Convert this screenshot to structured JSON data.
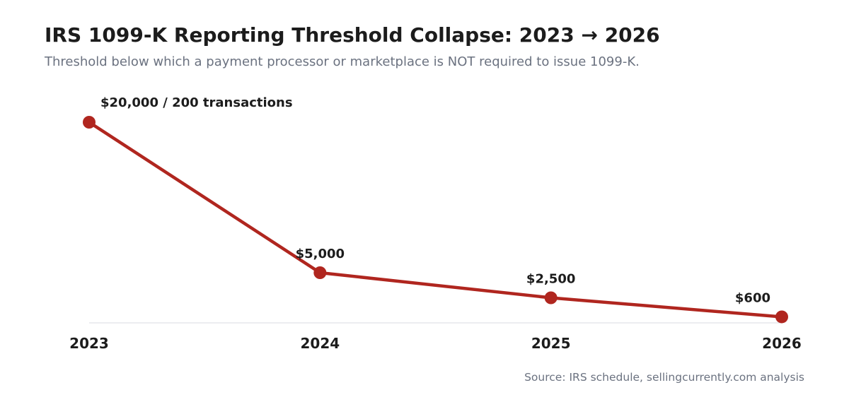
{
  "chart_data": {
    "type": "line",
    "title": "IRS 1099-K Reporting Threshold Collapse: 2023 → 2026",
    "subtitle": "Threshold below which a payment processor or marketplace is NOT required to issue 1099-K.",
    "source": "Source: IRS schedule, sellingcurrently.com analysis",
    "x": [
      "2023",
      "2024",
      "2025",
      "2026"
    ],
    "values": [
      20000,
      5000,
      2500,
      600
    ],
    "data_labels": [
      "$20,000 / 200 transactions",
      "$5,000",
      "$2,500",
      "$600"
    ],
    "ylim": [
      0,
      20000
    ],
    "grid": false,
    "line_color": "#b0261f",
    "marker_color": "#b0261f",
    "baseline_color": "#e5e7eb"
  }
}
